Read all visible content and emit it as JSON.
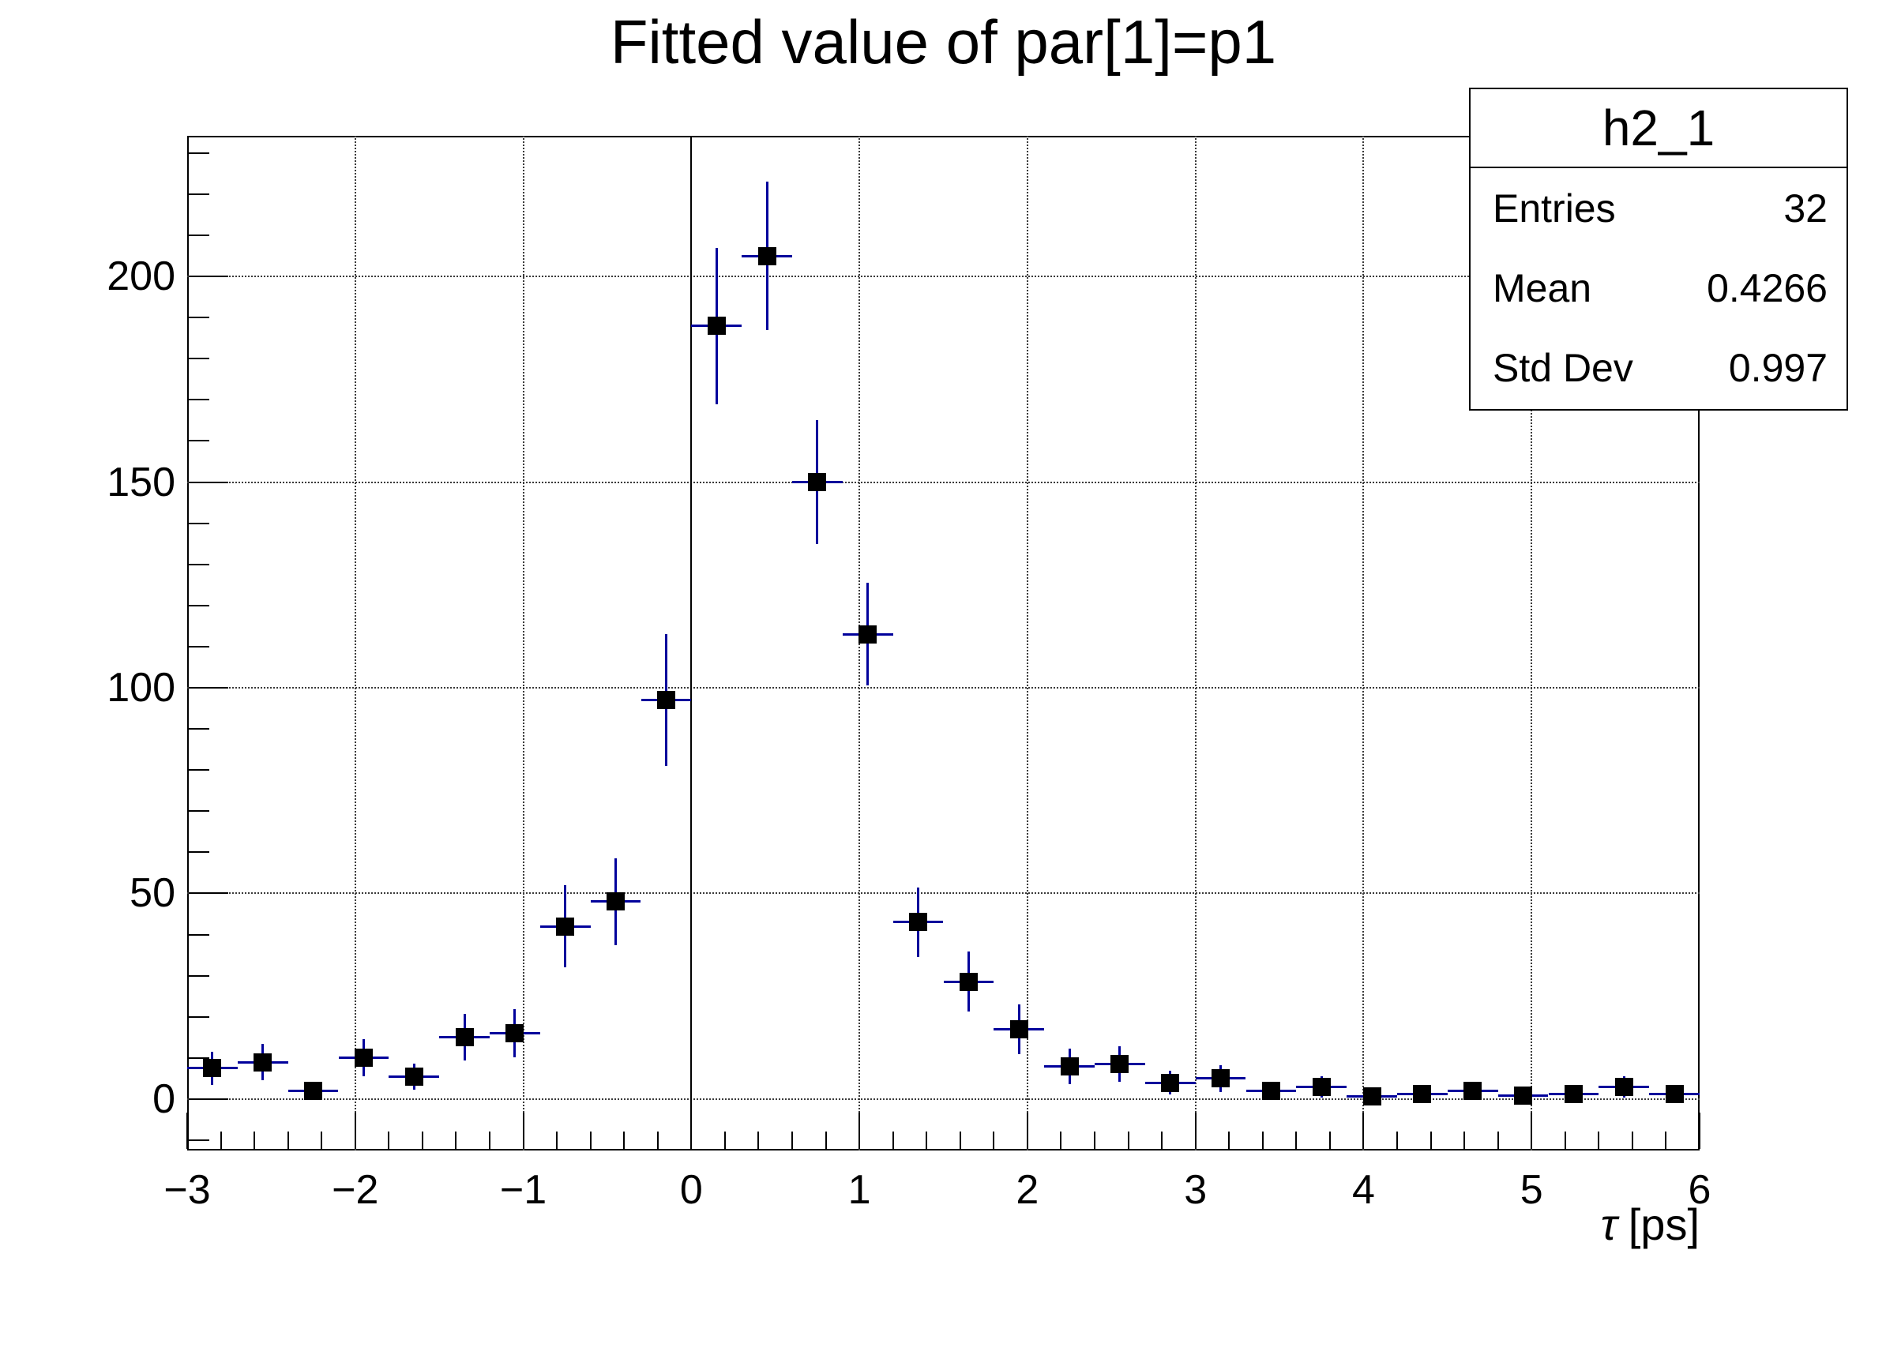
{
  "page": {
    "background": "#ffffff"
  },
  "chart_data": {
    "type": "scatter",
    "style": "histogram-with-error-bars",
    "title": "Fitted value of par[1]=p1",
    "x_axis": {
      "title_symbol": "τ",
      "title_unit": "[ps]",
      "min": -3,
      "max": 6,
      "major_ticks": [
        -3,
        -2,
        -1,
        0,
        1,
        2,
        3,
        4,
        5,
        6
      ],
      "tick_labels": [
        "−3",
        "−2",
        "−1",
        "0",
        "1",
        "2",
        "3",
        "4",
        "5",
        "6"
      ],
      "minor_step": 0.2
    },
    "y_axis": {
      "min": -12.5,
      "max": 234.2,
      "major_ticks": [
        0,
        50,
        100,
        150,
        200
      ],
      "tick_labels": [
        "0",
        "50",
        "100",
        "150",
        "200"
      ],
      "minor_step": 10
    },
    "grid": true,
    "zero_line_x": 0,
    "bin_half_width": 0.15,
    "points": [
      {
        "x": -2.85,
        "y": 7.5,
        "ey": 4.0
      },
      {
        "x": -2.55,
        "y": 9.0,
        "ey": 4.5
      },
      {
        "x": -2.25,
        "y": 2.0,
        "ey": 2.2
      },
      {
        "x": -1.95,
        "y": 10.0,
        "ey": 4.5
      },
      {
        "x": -1.65,
        "y": 5.5,
        "ey": 3.2
      },
      {
        "x": -1.35,
        "y": 15.0,
        "ey": 5.7
      },
      {
        "x": -1.05,
        "y": 16.0,
        "ey": 5.8
      },
      {
        "x": -0.75,
        "y": 42.0,
        "ey": 10.0
      },
      {
        "x": -0.45,
        "y": 48.0,
        "ey": 10.5
      },
      {
        "x": -0.15,
        "y": 97.0,
        "ey": 16.0
      },
      {
        "x": 0.15,
        "y": 188.0,
        "ey": 19.0
      },
      {
        "x": 0.45,
        "y": 205.0,
        "ey": 18.0
      },
      {
        "x": 0.75,
        "y": 150.0,
        "ey": 15.0
      },
      {
        "x": 1.05,
        "y": 113.0,
        "ey": 12.5
      },
      {
        "x": 1.35,
        "y": 43.0,
        "ey": 8.5
      },
      {
        "x": 1.65,
        "y": 28.5,
        "ey": 7.3
      },
      {
        "x": 1.95,
        "y": 17.0,
        "ey": 6.0
      },
      {
        "x": 2.25,
        "y": 8.0,
        "ey": 4.3
      },
      {
        "x": 2.55,
        "y": 8.5,
        "ey": 4.3
      },
      {
        "x": 2.85,
        "y": 4.0,
        "ey": 2.8
      },
      {
        "x": 3.15,
        "y": 5.0,
        "ey": 3.2
      },
      {
        "x": 3.45,
        "y": 2.0,
        "ey": 2.2
      },
      {
        "x": 3.75,
        "y": 3.0,
        "ey": 2.6
      },
      {
        "x": 4.05,
        "y": 0.6,
        "ey": 1.4
      },
      {
        "x": 4.35,
        "y": 1.2,
        "ey": 1.6
      },
      {
        "x": 4.65,
        "y": 2.0,
        "ey": 2.2
      },
      {
        "x": 4.95,
        "y": 0.8,
        "ey": 1.4
      },
      {
        "x": 5.25,
        "y": 1.2,
        "ey": 1.6
      },
      {
        "x": 5.55,
        "y": 3.0,
        "ey": 2.6
      },
      {
        "x": 5.85,
        "y": 1.2,
        "ey": 1.6
      }
    ],
    "colors": {
      "marker": "#000000",
      "error_bar": "#00009b",
      "grid_dot": "#3a3a3a",
      "frame": "#000000"
    },
    "legend_position": "none"
  },
  "stats_box": {
    "title": "h2_1",
    "rows": [
      {
        "label": "Entries",
        "value": "32"
      },
      {
        "label": "Mean",
        "value": "0.4266"
      },
      {
        "label": "Std Dev",
        "value": "0.997"
      }
    ]
  }
}
